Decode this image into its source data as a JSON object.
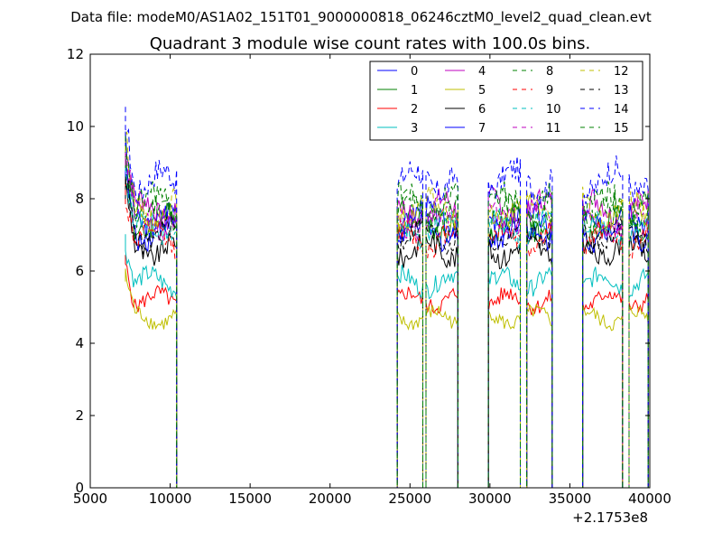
{
  "figure": {
    "suptitle": "Data file: modeM0/AS1A02_151T01_9000000818_06246cztM0_level2_quad_clean.evt"
  },
  "chart_data": {
    "type": "line",
    "title": "Quadrant 3 module wise count rates with 100.0s bins.",
    "xlabel": "",
    "ylabel": "",
    "x_offset_label": "+2.1753e8",
    "xlim": [
      5000,
      40000
    ],
    "ylim": [
      0,
      12
    ],
    "x_ticks": [
      5000,
      10000,
      15000,
      20000,
      25000,
      30000,
      35000,
      40000
    ],
    "y_ticks": [
      0,
      2,
      4,
      6,
      8,
      10,
      12
    ],
    "grid": false,
    "legend_position": "top-right",
    "legend_columns": 4,
    "bin_seconds": 100,
    "active_intervals": [
      [
        7200,
        10400
      ],
      [
        24200,
        25800
      ],
      [
        26000,
        28000
      ],
      [
        29900,
        31900
      ],
      [
        32300,
        33900
      ],
      [
        35800,
        38300
      ],
      [
        38700,
        39900
      ]
    ],
    "series": [
      {
        "name": "0",
        "color": "#0000ff",
        "dash": "solid",
        "level": 7.5
      },
      {
        "name": "1",
        "color": "#008000",
        "dash": "solid",
        "level": 7.3
      },
      {
        "name": "2",
        "color": "#ff0000",
        "dash": "solid",
        "level": 5.2
      },
      {
        "name": "3",
        "color": "#00bfbf",
        "dash": "solid",
        "level": 5.7
      },
      {
        "name": "4",
        "color": "#bf00bf",
        "dash": "solid",
        "level": 7.7
      },
      {
        "name": "5",
        "color": "#bfbf00",
        "dash": "solid",
        "level": 4.7
      },
      {
        "name": "6",
        "color": "#000000",
        "dash": "solid",
        "level": 6.6
      },
      {
        "name": "7",
        "color": "#0000ff",
        "dash": "solid",
        "level": 7.1
      },
      {
        "name": "8",
        "color": "#008000",
        "dash": "dashed",
        "level": 7.6
      },
      {
        "name": "9",
        "color": "#ff0000",
        "dash": "dashed",
        "level": 6.9
      },
      {
        "name": "10",
        "color": "#00bfbf",
        "dash": "dashed",
        "level": 7.2
      },
      {
        "name": "11",
        "color": "#bf00bf",
        "dash": "dashed",
        "level": 7.4
      },
      {
        "name": "12",
        "color": "#bfbf00",
        "dash": "dashed",
        "level": 7.7
      },
      {
        "name": "13",
        "color": "#000000",
        "dash": "dashed",
        "level": 7.0
      },
      {
        "name": "14",
        "color": "#0000ff",
        "dash": "dashed",
        "level": 8.5
      },
      {
        "name": "15",
        "color": "#008000",
        "dash": "dashed",
        "level": 7.9
      }
    ]
  }
}
